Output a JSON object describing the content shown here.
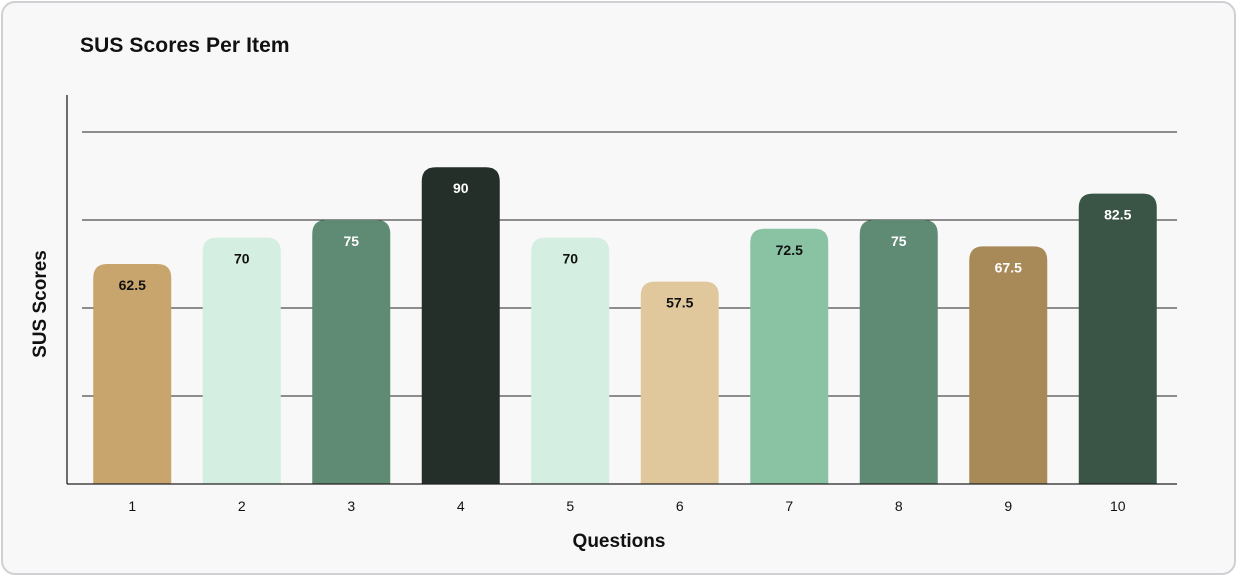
{
  "chart_data": {
    "type": "bar",
    "title": "SUS Scores Per Item",
    "xlabel": "Questions",
    "ylabel": "SUS Scores",
    "categories": [
      "1",
      "2",
      "3",
      "4",
      "5",
      "6",
      "7",
      "8",
      "9",
      "10"
    ],
    "values": [
      62.5,
      70,
      75,
      90,
      70,
      57.5,
      72.5,
      75,
      67.5,
      82.5
    ],
    "value_labels": [
      "62.5",
      "70",
      "75",
      "90",
      "70",
      "57.5",
      "72.5",
      "75",
      "67.5",
      "82.5"
    ],
    "colors": [
      "#c8a56c",
      "#d4efe1",
      "#5f8a74",
      "#232f28",
      "#d4efe1",
      "#e0c89c",
      "#8ac3a4",
      "#5f8a74",
      "#a88a58",
      "#3a5545"
    ],
    "label_colors": [
      "#111111",
      "#111111",
      "#ffffff",
      "#ffffff",
      "#111111",
      "#111111",
      "#111111",
      "#ffffff",
      "#ffffff",
      "#ffffff"
    ],
    "ylim": [
      0,
      100
    ],
    "grid": true,
    "legend": "none"
  }
}
